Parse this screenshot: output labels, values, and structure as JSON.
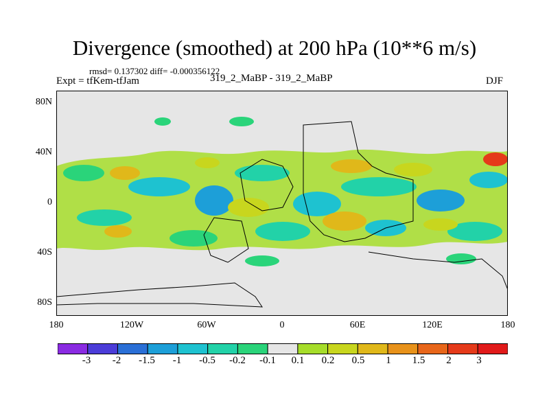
{
  "title": "Divergence (smoothed) at 200 hPa (10**6 m/s)",
  "stats": "rmsd= 0.137302 diff= -0.000356122",
  "expt": "Expt = tfKem-tfJam",
  "case": "319_2_MaBP - 319_2_MaBP",
  "season": "DJF",
  "y_labels": [
    "80N",
    "40N",
    "0",
    "40S",
    "80S"
  ],
  "x_labels": [
    "180",
    "120W",
    "60W",
    "0",
    "60E",
    "120E",
    "180"
  ],
  "colorbar_labels": [
    "-3",
    "-2",
    "-1.5",
    "-1",
    "-0.5",
    "-0.2",
    "-0.1",
    "0.1",
    "0.2",
    "0.5",
    "1",
    "1.5",
    "2",
    "3"
  ],
  "colorbar_colors": [
    "#8a2be2",
    "#4b3cd8",
    "#2a6fd6",
    "#1d9fd8",
    "#1ec2d0",
    "#22d2a8",
    "#2ad47a",
    "#e6e6e6",
    "#a6dd2a",
    "#c8d61e",
    "#e0b81a",
    "#e8921a",
    "#e8661a",
    "#e53a1a",
    "#e11a1a"
  ],
  "background_color": "#e6e6e6",
  "map_extent": {
    "lon": [
      -180,
      180
    ],
    "lat": [
      -90,
      90
    ]
  }
}
